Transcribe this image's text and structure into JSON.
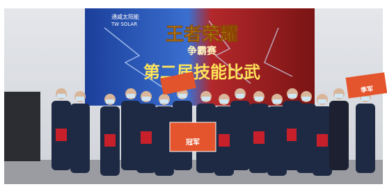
{
  "screen": {
    "logo_cn": "通威太阳能",
    "logo_en": "TW SOLAR",
    "headline": "王者荣耀",
    "subhead": "争霸赛",
    "banner": "第二届技能比武"
  },
  "signs": {
    "champion": "冠军",
    "third_place": "季军"
  }
}
